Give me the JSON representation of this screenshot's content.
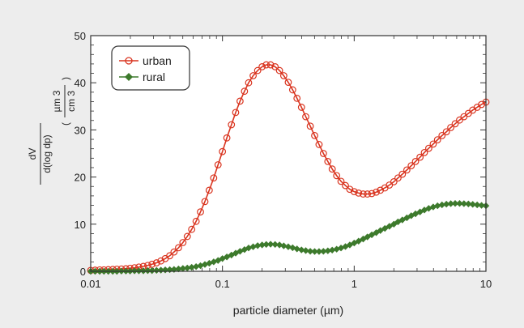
{
  "chart_data": {
    "type": "line",
    "xscale": "log",
    "xlim": [
      0.01,
      10
    ],
    "ylim": [
      0,
      50
    ],
    "x_ticks": [
      "0.01",
      "0.1",
      "1",
      "10"
    ],
    "y_ticks": [
      "0",
      "10",
      "20",
      "30",
      "40",
      "50"
    ],
    "xlabel": "particle diameter (µm)",
    "ylabel": {
      "numerator": "dV",
      "denominator": "d(log dp)",
      "unit_numerator": "µm 3",
      "unit_denominator": "cm 3"
    },
    "legend_position": "top-left",
    "series": [
      {
        "name": "urban",
        "color": "#d9341f",
        "marker": "open-circle",
        "x": [
          0.01,
          0.0108,
          0.0117,
          0.0126,
          0.0136,
          0.0147,
          0.0158,
          0.0171,
          0.0185,
          0.0199,
          0.0215,
          0.0232,
          0.0251,
          0.0271,
          0.0292,
          0.0316,
          0.0341,
          0.0368,
          0.0398,
          0.0429,
          0.0464,
          0.0501,
          0.0541,
          0.0584,
          0.0631,
          0.0681,
          0.0736,
          0.0794,
          0.0858,
          0.0926,
          0.1,
          0.108,
          0.117,
          0.126,
          0.136,
          0.147,
          0.158,
          0.171,
          0.185,
          0.2,
          0.215,
          0.232,
          0.251,
          0.271,
          0.292,
          0.316,
          0.341,
          0.368,
          0.398,
          0.429,
          0.464,
          0.501,
          0.541,
          0.584,
          0.631,
          0.681,
          0.736,
          0.794,
          0.858,
          0.926,
          1.0,
          1.08,
          1.17,
          1.26,
          1.36,
          1.47,
          1.58,
          1.71,
          1.85,
          2.0,
          2.15,
          2.32,
          2.51,
          2.71,
          2.92,
          3.16,
          3.41,
          3.68,
          3.98,
          4.29,
          4.64,
          5.01,
          5.41,
          5.84,
          6.31,
          6.81,
          7.36,
          7.94,
          8.58,
          9.26,
          10.0
        ],
        "values": [
          0.2,
          0.25,
          0.3,
          0.3,
          0.35,
          0.4,
          0.45,
          0.5,
          0.55,
          0.65,
          0.75,
          0.9,
          1.05,
          1.25,
          1.5,
          1.8,
          2.2,
          2.7,
          3.3,
          4.1,
          5.0,
          6.1,
          7.4,
          8.9,
          10.6,
          12.6,
          14.8,
          17.2,
          19.8,
          22.6,
          25.4,
          28.3,
          31.1,
          33.7,
          36.1,
          38.2,
          40.0,
          41.5,
          42.6,
          43.4,
          43.8,
          43.8,
          43.4,
          42.6,
          41.5,
          40.1,
          38.5,
          36.7,
          34.8,
          32.8,
          30.8,
          28.8,
          26.9,
          25.0,
          23.3,
          21.7,
          20.3,
          19.1,
          18.2,
          17.4,
          16.9,
          16.6,
          16.4,
          16.4,
          16.5,
          16.8,
          17.2,
          17.7,
          18.3,
          19.0,
          19.8,
          20.6,
          21.5,
          22.4,
          23.3,
          24.2,
          25.2,
          26.1,
          27.0,
          27.9,
          28.8,
          29.6,
          30.5,
          31.3,
          32.1,
          32.8,
          33.5,
          34.2,
          34.8,
          35.4,
          35.9
        ]
      },
      {
        "name": "rural",
        "color": "#3d7a2c",
        "marker": "filled-diamond",
        "x": [
          0.01,
          0.0108,
          0.0117,
          0.0126,
          0.0136,
          0.0147,
          0.0158,
          0.0171,
          0.0185,
          0.0199,
          0.0215,
          0.0232,
          0.0251,
          0.0271,
          0.0292,
          0.0316,
          0.0341,
          0.0368,
          0.0398,
          0.0429,
          0.0464,
          0.0501,
          0.0541,
          0.0584,
          0.0631,
          0.0681,
          0.0736,
          0.0794,
          0.0858,
          0.0926,
          0.1,
          0.108,
          0.117,
          0.126,
          0.136,
          0.147,
          0.158,
          0.171,
          0.185,
          0.2,
          0.215,
          0.232,
          0.251,
          0.271,
          0.292,
          0.316,
          0.341,
          0.368,
          0.398,
          0.429,
          0.464,
          0.501,
          0.541,
          0.584,
          0.631,
          0.681,
          0.736,
          0.794,
          0.858,
          0.926,
          1.0,
          1.08,
          1.17,
          1.26,
          1.36,
          1.47,
          1.58,
          1.71,
          1.85,
          2.0,
          2.15,
          2.32,
          2.51,
          2.71,
          2.92,
          3.16,
          3.41,
          3.68,
          3.98,
          4.29,
          4.64,
          5.01,
          5.41,
          5.84,
          6.31,
          6.81,
          7.36,
          7.94,
          8.58,
          9.26,
          10.0
        ],
        "values": [
          0.0,
          0.0,
          0.0,
          0.0,
          0.0,
          0.0,
          0.0,
          0.05,
          0.05,
          0.05,
          0.1,
          0.1,
          0.1,
          0.15,
          0.15,
          0.2,
          0.25,
          0.3,
          0.35,
          0.4,
          0.5,
          0.6,
          0.7,
          0.85,
          1.0,
          1.2,
          1.45,
          1.7,
          2.0,
          2.3,
          2.7,
          3.05,
          3.45,
          3.85,
          4.25,
          4.6,
          4.95,
          5.2,
          5.45,
          5.6,
          5.7,
          5.75,
          5.7,
          5.6,
          5.4,
          5.2,
          5.0,
          4.75,
          4.55,
          4.4,
          4.25,
          4.2,
          4.2,
          4.25,
          4.35,
          4.5,
          4.7,
          4.95,
          5.25,
          5.6,
          6.0,
          6.4,
          6.85,
          7.3,
          7.75,
          8.2,
          8.65,
          9.1,
          9.55,
          10.0,
          10.5,
          10.9,
          11.35,
          11.8,
          12.2,
          12.6,
          13.0,
          13.35,
          13.65,
          13.9,
          14.1,
          14.25,
          14.35,
          14.4,
          14.4,
          14.35,
          14.3,
          14.2,
          14.1,
          14.0,
          13.9
        ]
      }
    ]
  }
}
